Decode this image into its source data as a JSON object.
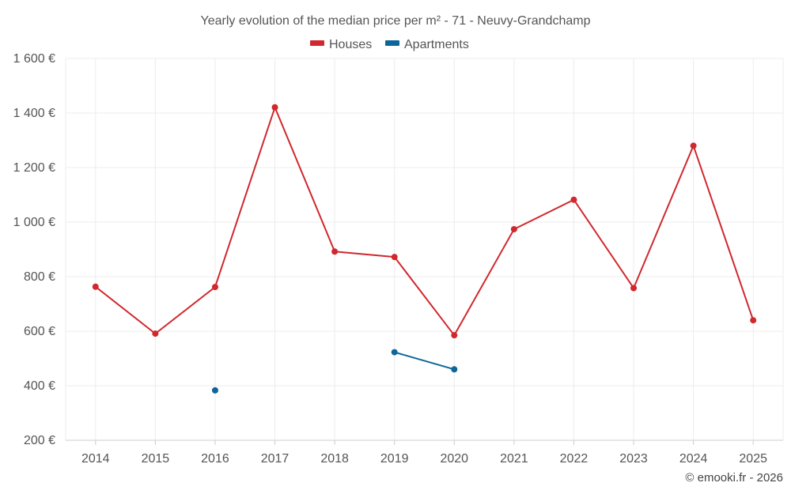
{
  "chart_data": {
    "type": "line",
    "title": "Yearly evolution of the median price per m² - 71 - Neuvy-Grandchamp",
    "categories": [
      "2014",
      "2015",
      "2016",
      "2017",
      "2018",
      "2019",
      "2020",
      "2021",
      "2022",
      "2023",
      "2024",
      "2025"
    ],
    "ylim": [
      200,
      1600
    ],
    "yticks": [
      200,
      400,
      600,
      800,
      1000,
      1200,
      1400,
      1600
    ],
    "ytick_labels": [
      "200 €",
      "400 €",
      "600 €",
      "800 €",
      "1 000 €",
      "1 200 €",
      "1 400 €",
      "1 600 €"
    ],
    "grid": true,
    "legend_position": "top-center",
    "series": [
      {
        "name": "Houses",
        "color": "#d0282d",
        "values": [
          763,
          591,
          762,
          1421,
          892,
          872,
          585,
          974,
          1082,
          758,
          1280,
          640
        ]
      },
      {
        "name": "Apartments",
        "color": "#0d6699",
        "values": [
          null,
          null,
          383,
          null,
          null,
          523,
          460,
          null,
          null,
          null,
          null,
          null
        ]
      }
    ]
  },
  "credit": "© emooki.fr - 2026"
}
